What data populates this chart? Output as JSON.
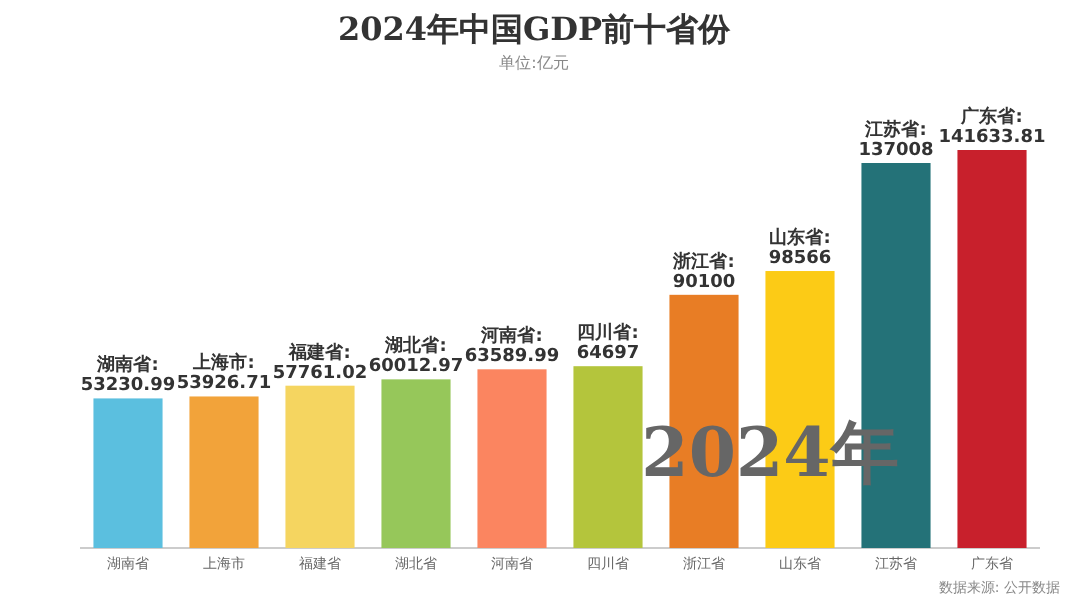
{
  "chart_data": {
    "type": "bar",
    "title": "2024年中国GDP前十省份",
    "subtitle": "单位:亿元",
    "categories": [
      "湖南省",
      "上海市",
      "福建省",
      "湖北省",
      "河南省",
      "四川省",
      "浙江省",
      "山东省",
      "江苏省",
      "广东省"
    ],
    "values": [
      53230.99,
      53926.71,
      57761.02,
      60012.97,
      63589.99,
      64697,
      90100,
      98566,
      137008,
      141633.81
    ],
    "colors": [
      "#5bbfdf",
      "#f2a33a",
      "#f5d560",
      "#96c75a",
      "#fb8560",
      "#b4c53c",
      "#e87d25",
      "#fccb16",
      "#247278",
      "#c8202c"
    ],
    "value_labels": [
      "湖南省:53230.99",
      "上海市:53926.71",
      "福建省:57761.02",
      "湖北省:60012.97",
      "河南省:63589.99",
      "四川省:64697",
      "浙江省:90100",
      "山东省:98566",
      "江苏省:137008",
      "广东省:141633.81"
    ],
    "annotations": [
      "2024年",
      "数据来源: 公开数据"
    ]
  }
}
